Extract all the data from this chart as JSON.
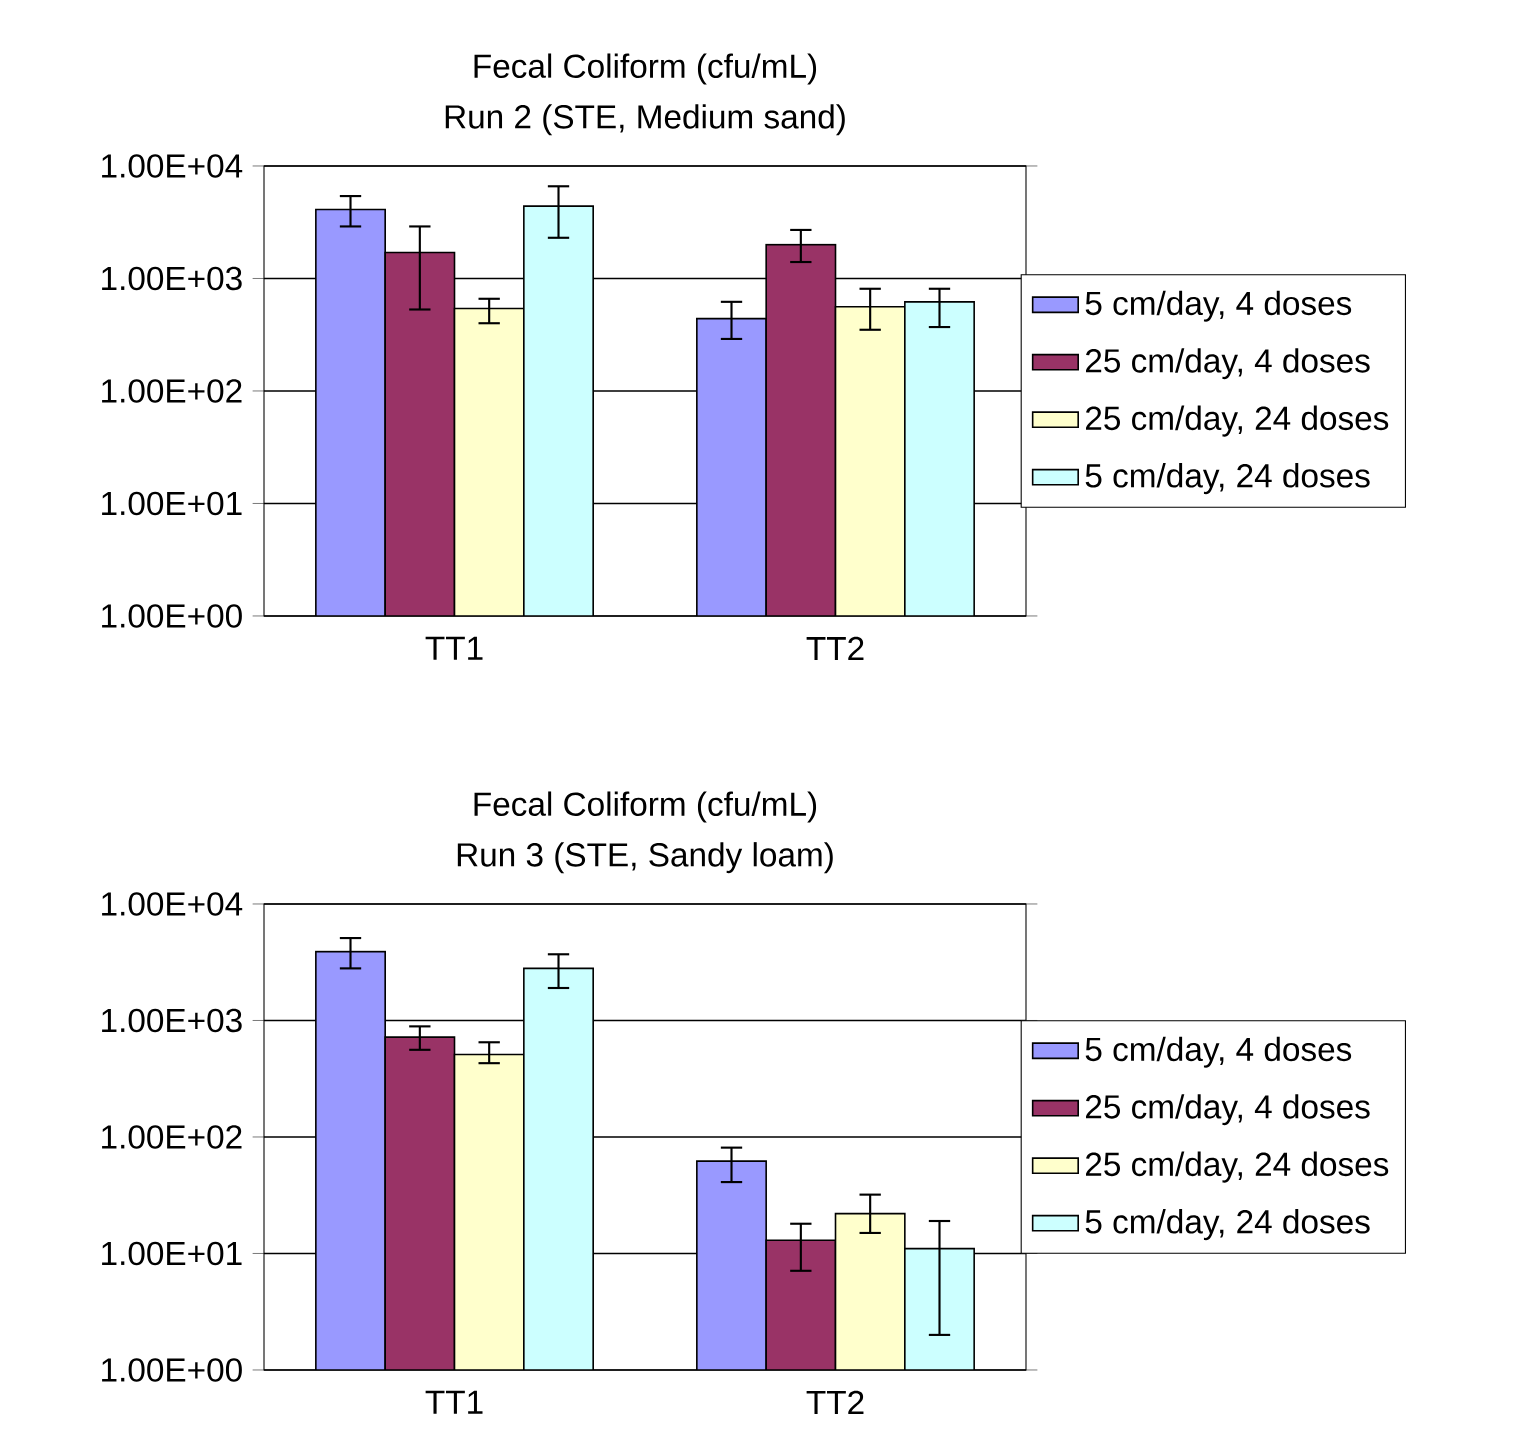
{
  "chart_data": [
    {
      "type": "bar",
      "title": "Fecal Coliform (cfu/mL)",
      "subtitle": "Run 2 (STE, Medium sand)",
      "categories": [
        "TT1",
        "TT2"
      ],
      "log": "y",
      "ylim": [
        1,
        10000
      ],
      "yticks": [
        {
          "value": 1,
          "label": "1.00E+00"
        },
        {
          "value": 10,
          "label": "1.00E+01"
        },
        {
          "value": 100,
          "label": "1.00E+02"
        },
        {
          "value": 1000,
          "label": "1.00E+03"
        },
        {
          "value": 10000,
          "label": "1.00E+04"
        }
      ],
      "grid": "y",
      "legend": "right",
      "series": [
        {
          "name": "5 cm/day, 4 doses",
          "color": "#9999ff",
          "values": [
            4100,
            440
          ],
          "errors": [
            [
              2900,
              5400
            ],
            [
              290,
              620
            ]
          ]
        },
        {
          "name": "25 cm/day, 4 doses",
          "color": "#993366",
          "values": [
            1700,
            2000
          ],
          "errors": [
            [
              530,
              2900
            ],
            [
              1400,
              2700
            ]
          ]
        },
        {
          "name": "25 cm/day, 24 doses",
          "color": "#ffffcc",
          "values": [
            540,
            560
          ],
          "errors": [
            [
              400,
              660
            ],
            [
              350,
              810
            ]
          ]
        },
        {
          "name": "5 cm/day, 24 doses",
          "color": "#ccffff",
          "values": [
            4400,
            620
          ],
          "errors": [
            [
              2300,
              6600
            ],
            [
              370,
              810
            ]
          ]
        }
      ]
    },
    {
      "type": "bar",
      "title": "Fecal Coliform (cfu/mL)",
      "subtitle": "Run 3 (STE, Sandy loam)",
      "categories": [
        "TT1",
        "TT2"
      ],
      "log": "y",
      "ylim": [
        1,
        10000
      ],
      "yticks": [
        {
          "value": 1,
          "label": "1.00E+00"
        },
        {
          "value": 10,
          "label": "1.00E+01"
        },
        {
          "value": 100,
          "label": "1.00E+02"
        },
        {
          "value": 1000,
          "label": "1.00E+03"
        },
        {
          "value": 10000,
          "label": "1.00E+04"
        }
      ],
      "grid": "y",
      "legend": "right",
      "series": [
        {
          "name": "5 cm/day, 4 doses",
          "color": "#9999ff",
          "values": [
            3900,
            62
          ],
          "errors": [
            [
              2800,
              5100
            ],
            [
              41,
              81
            ]
          ]
        },
        {
          "name": "25 cm/day, 4 doses",
          "color": "#993366",
          "values": [
            720,
            13
          ],
          "errors": [
            [
              560,
              890
            ],
            [
              7.1,
              18
            ]
          ]
        },
        {
          "name": "25 cm/day, 24 doses",
          "color": "#ffffcc",
          "values": [
            510,
            22
          ],
          "errors": [
            [
              430,
              650
            ],
            [
              15,
              32
            ]
          ]
        },
        {
          "name": "5 cm/day, 24 doses",
          "color": "#ccffff",
          "values": [
            2800,
            11
          ],
          "errors": [
            [
              1900,
              3700
            ],
            [
              2,
              19
            ]
          ]
        }
      ]
    }
  ]
}
